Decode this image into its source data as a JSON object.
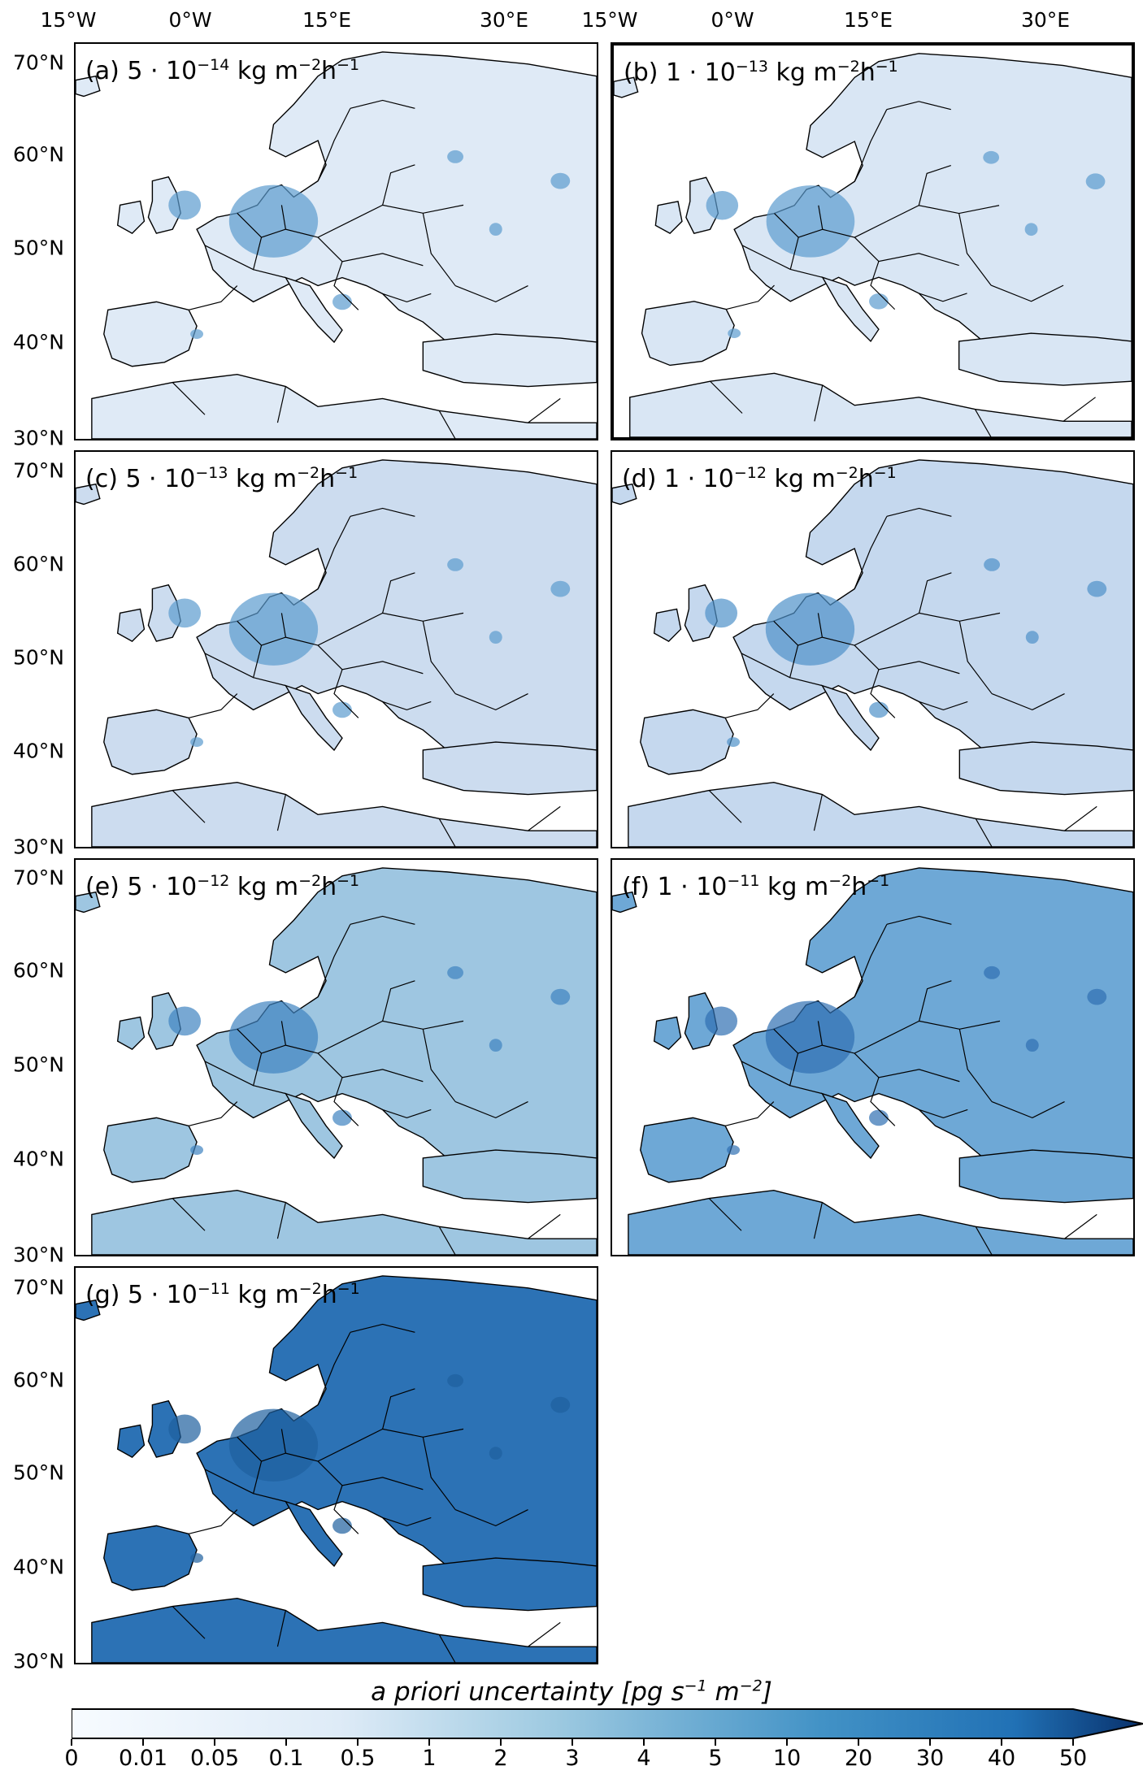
{
  "figure": {
    "top_axis_labels": [
      "15°W",
      "0°W",
      "15°E",
      "30°E",
      "15°W",
      "0°W",
      "15°E",
      "30°E"
    ],
    "lat_labels": [
      [
        "70°N",
        "60°N",
        "50°N",
        "40°N",
        "30°N"
      ],
      [
        "70°N",
        "60°N",
        "50°N",
        "40°N",
        "30°N"
      ],
      [
        "70°N",
        "60°N",
        "50°N",
        "40°N",
        "30°N"
      ],
      [
        "70°N",
        "60°N",
        "50°N",
        "40°N",
        "30°N"
      ]
    ]
  },
  "panels": [
    {
      "id": "a",
      "label": "(a)",
      "mantissa": "5",
      "exponent": "−14",
      "unit": "kg m",
      "unit_exp1": "−2",
      "unit_h": "h",
      "unit_exp2": "−1",
      "fill": "#dfeaf6",
      "hot": "#5b9bcf",
      "highlighted": false
    },
    {
      "id": "b",
      "label": "(b)",
      "mantissa": "1",
      "exponent": "−13",
      "unit": "kg m",
      "unit_exp1": "−2",
      "unit_h": "h",
      "unit_exp2": "−1",
      "fill": "#d9e6f4",
      "hot": "#5b9bcf",
      "highlighted": true
    },
    {
      "id": "c",
      "label": "(c)",
      "mantissa": "5",
      "exponent": "−13",
      "unit": "kg m",
      "unit_exp1": "−2",
      "unit_h": "h",
      "unit_exp2": "−1",
      "fill": "#ccdcef",
      "hot": "#5b9bcf",
      "highlighted": false
    },
    {
      "id": "d",
      "label": "(d)",
      "mantissa": "1",
      "exponent": "−12",
      "unit": "kg m",
      "unit_exp1": "−2",
      "unit_h": "h",
      "unit_exp2": "−1",
      "fill": "#c5d8ee",
      "hot": "#4f92c9",
      "highlighted": false
    },
    {
      "id": "e",
      "label": "(e)",
      "mantissa": "5",
      "exponent": "−12",
      "unit": "kg m",
      "unit_exp1": "−2",
      "unit_h": "h",
      "unit_exp2": "−1",
      "fill": "#9ec6e1",
      "hot": "#3f83c0",
      "highlighted": false
    },
    {
      "id": "f",
      "label": "(f)",
      "mantissa": "1",
      "exponent": "−11",
      "unit": "kg m",
      "unit_exp1": "−2",
      "unit_h": "h",
      "unit_exp2": "−1",
      "fill": "#6ea8d6",
      "hot": "#2f6fb2",
      "highlighted": false
    },
    {
      "id": "g",
      "label": "(g)",
      "mantissa": "5",
      "exponent": "−11",
      "unit": "kg m",
      "unit_exp1": "−2",
      "unit_h": "h",
      "unit_exp2": "−1",
      "fill": "#2c72b5",
      "hot": "#1e5f9e",
      "highlighted": false
    }
  ],
  "colorbar": {
    "title_main": "a priori uncertainty [pg s",
    "title_exp1": "−1",
    "title_mid": " m",
    "title_exp2": "−2",
    "title_end": "]",
    "ticks": [
      "0",
      "0.01",
      "0.05",
      "0.1",
      "0.5",
      "1",
      "2",
      "3",
      "4",
      "5",
      "10",
      "20",
      "30",
      "40",
      "50"
    ],
    "color_start": "#f7fbff",
    "color_end": "#08306b",
    "extend": "max"
  }
}
